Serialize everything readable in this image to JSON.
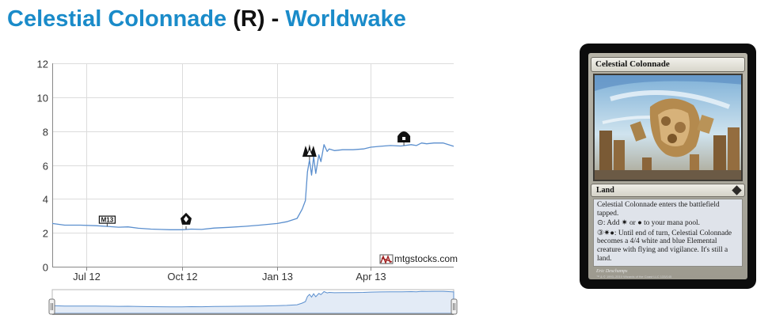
{
  "page": {
    "title_name": "Celestial Colonnade",
    "title_rarity": "R",
    "title_separator": "-",
    "title_set": "Worldwake"
  },
  "watermark": "mtgstocks.com",
  "colors": {
    "title_link": "#1a8bc9",
    "line": "#5b8fce",
    "navigator_fill": "#e3ebf6",
    "grid": "#dcdcdc"
  },
  "chart_data": {
    "type": "line",
    "title": "",
    "xlabel": "",
    "ylabel": "",
    "x_range": [
      "2012-05-29",
      "2013-06-20"
    ],
    "ylim": [
      0,
      12
    ],
    "y_ticks": [
      0,
      2,
      4,
      6,
      8,
      10,
      12
    ],
    "x_ticks": [
      {
        "date": "2012-07-01",
        "label": "Jul 12"
      },
      {
        "date": "2012-10-01",
        "label": "Oct 12"
      },
      {
        "date": "2013-01-01",
        "label": "Jan 13"
      },
      {
        "date": "2013-04-01",
        "label": "Apr 13"
      }
    ],
    "grid": true,
    "series": [
      {
        "points": [
          [
            "2012-05-29",
            2.55
          ],
          [
            "2012-06-10",
            2.45
          ],
          [
            "2012-06-25",
            2.45
          ],
          [
            "2012-07-10",
            2.42
          ],
          [
            "2012-07-20",
            2.38
          ],
          [
            "2012-08-01",
            2.33
          ],
          [
            "2012-08-10",
            2.35
          ],
          [
            "2012-08-20",
            2.27
          ],
          [
            "2012-09-01",
            2.22
          ],
          [
            "2012-09-10",
            2.2
          ],
          [
            "2012-09-20",
            2.18
          ],
          [
            "2012-10-01",
            2.18
          ],
          [
            "2012-10-10",
            2.22
          ],
          [
            "2012-10-20",
            2.2
          ],
          [
            "2012-11-01",
            2.28
          ],
          [
            "2012-11-15",
            2.32
          ],
          [
            "2012-12-01",
            2.38
          ],
          [
            "2012-12-15",
            2.45
          ],
          [
            "2013-01-01",
            2.55
          ],
          [
            "2013-01-10",
            2.65
          ],
          [
            "2013-01-20",
            2.85
          ],
          [
            "2013-01-25",
            3.4
          ],
          [
            "2013-01-28",
            3.9
          ],
          [
            "2013-01-30",
            5.6
          ],
          [
            "2013-02-01",
            6.3
          ],
          [
            "2013-02-03",
            5.4
          ],
          [
            "2013-02-05",
            6.5
          ],
          [
            "2013-02-07",
            5.5
          ],
          [
            "2013-02-10",
            6.6
          ],
          [
            "2013-02-12",
            6.2
          ],
          [
            "2013-02-15",
            7.2
          ],
          [
            "2013-02-18",
            6.8
          ],
          [
            "2013-02-20",
            6.95
          ],
          [
            "2013-02-25",
            6.85
          ],
          [
            "2013-03-05",
            6.9
          ],
          [
            "2013-03-15",
            6.9
          ],
          [
            "2013-03-25",
            6.95
          ],
          [
            "2013-04-01",
            7.05
          ],
          [
            "2013-04-10",
            7.1
          ],
          [
            "2013-04-20",
            7.15
          ],
          [
            "2013-04-30",
            7.12
          ],
          [
            "2013-05-10",
            7.2
          ],
          [
            "2013-05-15",
            7.15
          ],
          [
            "2013-05-20",
            7.3
          ],
          [
            "2013-05-25",
            7.25
          ],
          [
            "2013-06-01",
            7.3
          ],
          [
            "2013-06-10",
            7.3
          ],
          [
            "2013-06-20",
            7.1
          ]
        ]
      }
    ],
    "event_markers": [
      {
        "date": "2012-07-21",
        "icon": "m13-set-icon",
        "label": "M13"
      },
      {
        "date": "2012-10-05",
        "icon": "return-to-ravnica-set-icon"
      },
      {
        "date": "2013-02-01",
        "icon": "gatecrash-set-icon"
      },
      {
        "date": "2013-05-03",
        "icon": "dragons-maze-set-icon"
      }
    ]
  },
  "card": {
    "name": "Celestial Colonnade",
    "type_line": "Land",
    "rules": [
      "Celestial Colonnade enters the battlefield tapped.",
      "⊙: Add ✷ or ● to your mana pool.",
      "③✷●: Until end of turn, Celestial Colonnade becomes a 4/4 white and blue Elemental creature with flying and vigilance. It's still a land."
    ],
    "artist": "Eric Deschamps",
    "legal": "™ & © 1993–2010 Wizards of the Coast LLC 133/145"
  }
}
